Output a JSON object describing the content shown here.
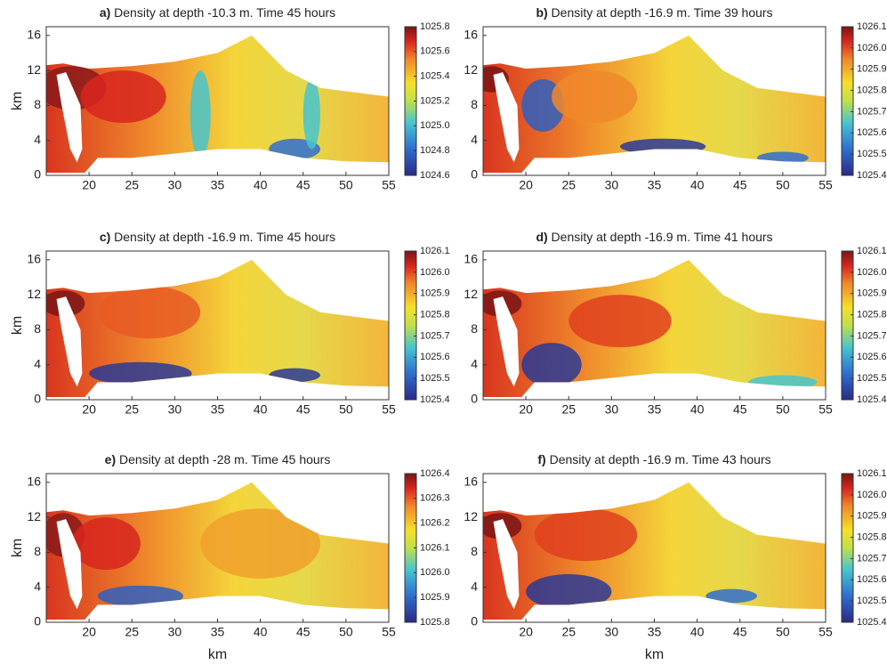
{
  "chart_data": [
    {
      "type": "field",
      "panel": "a)",
      "title": "Density at depth -10.3 m. Time 45 hours",
      "ylabel": "km",
      "xlim": [
        15,
        55
      ],
      "xticks": [
        20,
        25,
        30,
        35,
        40,
        45,
        50,
        55
      ],
      "ylim": [
        0,
        17
      ],
      "yticks": [
        0,
        4,
        8,
        12,
        16
      ],
      "clim": [
        1024.6,
        1025.8
      ],
      "cticks": [
        1024.6,
        1024.8,
        {
          "value": 1025,
          "label": "1025.0"
        },
        1025.2,
        1025.4,
        1025.6,
        1025.8
      ]
    },
    {
      "type": "field",
      "panel": "b)",
      "title": "Density at depth -16.9 m. Time 39 hours",
      "xlim": [
        15,
        55
      ],
      "xticks": [
        20,
        25,
        30,
        35,
        40,
        45,
        50,
        55
      ],
      "ylim": [
        0,
        17
      ],
      "yticks": [
        0,
        4,
        8,
        12,
        16
      ],
      "clim": [
        1025.4,
        1026.1
      ],
      "cticks": [
        1025.4,
        1025.5,
        1025.6,
        1025.7,
        1025.8,
        1025.9,
        {
          "value": 1026,
          "label": "1026.0"
        },
        1026.1
      ]
    },
    {
      "type": "field",
      "panel": "c)",
      "title": "Density at depth -16.9 m. Time 45 hours",
      "ylabel": "km",
      "xlim": [
        15,
        55
      ],
      "xticks": [
        20,
        25,
        30,
        35,
        40,
        45,
        50,
        55
      ],
      "ylim": [
        0,
        17
      ],
      "yticks": [
        0,
        4,
        8,
        12,
        16
      ],
      "clim": [
        1025.4,
        1026.1
      ],
      "cticks": [
        1025.4,
        1025.5,
        1025.6,
        1025.7,
        1025.8,
        1025.9,
        {
          "value": 1026,
          "label": "1026.0"
        },
        1026.1
      ]
    },
    {
      "type": "field",
      "panel": "d)",
      "title": "Density at depth -16.9 m. Time 41 hours",
      "xlim": [
        15,
        55
      ],
      "xticks": [
        20,
        25,
        30,
        35,
        40,
        45,
        50,
        55
      ],
      "ylim": [
        0,
        17
      ],
      "yticks": [
        0,
        4,
        8,
        12,
        16
      ],
      "clim": [
        1025.4,
        1026.1
      ],
      "cticks": [
        1025.4,
        1025.5,
        1025.6,
        1025.7,
        1025.8,
        1025.9,
        {
          "value": 1026,
          "label": "1026.0"
        },
        1026.1
      ]
    },
    {
      "type": "field",
      "panel": "e)",
      "title": "Density at depth -28 m. Time 45 hours",
      "ylabel": "km",
      "xlabel": "km",
      "xlim": [
        15,
        55
      ],
      "xticks": [
        20,
        25,
        30,
        35,
        40,
        45,
        50,
        55
      ],
      "ylim": [
        0,
        17
      ],
      "yticks": [
        0,
        4,
        8,
        12,
        16
      ],
      "clim": [
        1025.8,
        1026.4
      ],
      "cticks": [
        1025.8,
        1025.9,
        {
          "value": 1026,
          "label": "1026.0"
        },
        1026.1,
        1026.2,
        1026.3,
        1026.4
      ]
    },
    {
      "type": "field",
      "panel": "f)",
      "title": "Density at depth -16.9 m. Time 43 hours",
      "xlabel": "km",
      "xlim": [
        15,
        55
      ],
      "xticks": [
        20,
        25,
        30,
        35,
        40,
        45,
        50,
        55
      ],
      "ylim": [
        0,
        17
      ],
      "yticks": [
        0,
        4,
        8,
        12,
        16
      ],
      "clim": [
        1025.4,
        1026.1
      ],
      "cticks": [
        1025.4,
        1025.5,
        1025.6,
        1025.7,
        1025.8,
        1025.9,
        {
          "value": 1026,
          "label": "1026.0"
        },
        1026.1
      ]
    }
  ]
}
